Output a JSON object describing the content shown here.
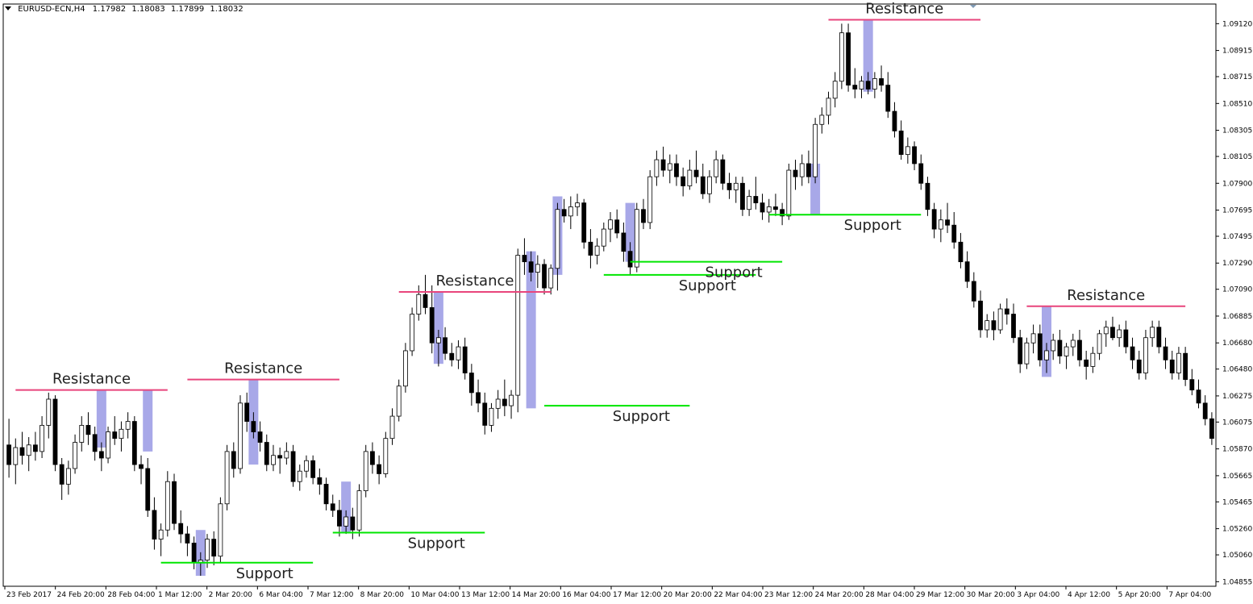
{
  "header": {
    "symbol": "EURUSD-ECN,H4",
    "ohlc": [
      "1.17982",
      "1.18083",
      "1.17899",
      "1.18032"
    ]
  },
  "chart_data": {
    "type": "candlestick",
    "title": "",
    "xlabel": "",
    "ylabel": "",
    "ylim": [
      1.0482,
      1.0927
    ],
    "grid": false,
    "y_ticks": [
      "1.09120",
      "1.08915",
      "1.08715",
      "1.08510",
      "1.08305",
      "1.08105",
      "1.07900",
      "1.07695",
      "1.07495",
      "1.07290",
      "1.07090",
      "1.06885",
      "1.06680",
      "1.06480",
      "1.06275",
      "1.06075",
      "1.05870",
      "1.05665",
      "1.05465",
      "1.05260",
      "1.05060",
      "1.04855"
    ],
    "x_ticks": [
      "23 Feb 2017",
      "24 Feb 20:00",
      "28 Feb 04:00",
      "1 Mar 12:00",
      "2 Mar 20:00",
      "6 Mar 04:00",
      "7 Mar 12:00",
      "8 Mar 20:00",
      "10 Mar 04:00",
      "13 Mar 12:00",
      "14 Mar 20:00",
      "16 Mar 04:00",
      "17 Mar 12:00",
      "20 Mar 20:00",
      "22 Mar 04:00",
      "23 Mar 12:00",
      "24 Mar 20:00",
      "28 Mar 04:00",
      "29 Mar 12:00",
      "30 Mar 20:00",
      "3 Apr 04:00",
      "4 Apr 12:00",
      "5 Apr 20:00",
      "7 Apr 04:00"
    ],
    "candles": [
      [
        1.059,
        1.061,
        1.0565,
        1.0575
      ],
      [
        1.0575,
        1.0595,
        1.056,
        1.0588
      ],
      [
        1.0588,
        1.06,
        1.0575,
        1.0582
      ],
      [
        1.0582,
        1.0596,
        1.057,
        1.059
      ],
      [
        1.059,
        1.06,
        1.0578,
        1.0585
      ],
      [
        1.0585,
        1.0612,
        1.058,
        1.0605
      ],
      [
        1.0605,
        1.063,
        1.0595,
        1.0625
      ],
      [
        1.0625,
        1.0628,
        1.057,
        1.0575
      ],
      [
        1.0575,
        1.058,
        1.0548,
        1.056
      ],
      [
        1.056,
        1.0578,
        1.0552,
        1.0572
      ],
      [
        1.0572,
        1.0598,
        1.0568,
        1.0592
      ],
      [
        1.0592,
        1.0612,
        1.0585,
        1.0605
      ],
      [
        1.0605,
        1.0615,
        1.059,
        1.0598
      ],
      [
        1.0598,
        1.0604,
        1.0578,
        1.0585
      ],
      [
        1.0585,
        1.0592,
        1.057,
        1.058
      ],
      [
        1.058,
        1.0604,
        1.0576,
        1.06
      ],
      [
        1.06,
        1.0612,
        1.059,
        1.0595
      ],
      [
        1.0595,
        1.0608,
        1.0585,
        1.0602
      ],
      [
        1.0602,
        1.0615,
        1.0595,
        1.0608
      ],
      [
        1.0608,
        1.0612,
        1.057,
        1.0575
      ],
      [
        1.0575,
        1.0582,
        1.056,
        1.0572
      ],
      [
        1.0572,
        1.058,
        1.0535,
        1.054
      ],
      [
        1.054,
        1.055,
        1.051,
        1.0518
      ],
      [
        1.0518,
        1.053,
        1.0505,
        1.0525
      ],
      [
        1.0525,
        1.057,
        1.052,
        1.0562
      ],
      [
        1.0562,
        1.0568,
        1.0525,
        1.053
      ],
      [
        1.053,
        1.054,
        1.0515,
        1.0522
      ],
      [
        1.0522,
        1.0528,
        1.0505,
        1.0515
      ],
      [
        1.0515,
        1.052,
        1.0495,
        1.05
      ],
      [
        1.05,
        1.0508,
        1.049,
        1.0502
      ],
      [
        1.0502,
        1.0522,
        1.0496,
        1.0518
      ],
      [
        1.0518,
        1.0524,
        1.0498,
        1.0505
      ],
      [
        1.0505,
        1.055,
        1.05,
        1.0545
      ],
      [
        1.0545,
        1.059,
        1.054,
        1.0585
      ],
      [
        1.0585,
        1.0592,
        1.0565,
        1.0572
      ],
      [
        1.0572,
        1.0628,
        1.0568,
        1.0622
      ],
      [
        1.0622,
        1.063,
        1.06,
        1.0608
      ],
      [
        1.0608,
        1.0615,
        1.0595,
        1.06
      ],
      [
        1.06,
        1.0608,
        1.0585,
        1.0592
      ],
      [
        1.0592,
        1.0598,
        1.057,
        1.0575
      ],
      [
        1.0575,
        1.059,
        1.057,
        1.0582
      ],
      [
        1.0582,
        1.0588,
        1.0568,
        1.058
      ],
      [
        1.058,
        1.0592,
        1.0575,
        1.0585
      ],
      [
        1.0585,
        1.059,
        1.0558,
        1.0562
      ],
      [
        1.0562,
        1.0575,
        1.0555,
        1.057
      ],
      [
        1.057,
        1.0582,
        1.0565,
        1.0578
      ],
      [
        1.0578,
        1.0582,
        1.056,
        1.0565
      ],
      [
        1.0565,
        1.0572,
        1.0552,
        1.056
      ],
      [
        1.056,
        1.0565,
        1.054,
        1.0545
      ],
      [
        1.0545,
        1.0552,
        1.0535,
        1.054
      ],
      [
        1.054,
        1.0548,
        1.052,
        1.0528
      ],
      [
        1.0528,
        1.054,
        1.0522,
        1.0535
      ],
      [
        1.0535,
        1.0542,
        1.0518,
        1.0525
      ],
      [
        1.0525,
        1.056,
        1.052,
        1.0555
      ],
      [
        1.0555,
        1.059,
        1.055,
        1.0585
      ],
      [
        1.0585,
        1.0592,
        1.0568,
        1.0575
      ],
      [
        1.0575,
        1.0582,
        1.056,
        1.0568
      ],
      [
        1.0568,
        1.06,
        1.0565,
        1.0595
      ],
      [
        1.0595,
        1.0618,
        1.059,
        1.0612
      ],
      [
        1.0612,
        1.064,
        1.0608,
        1.0635
      ],
      [
        1.0635,
        1.0668,
        1.063,
        1.0662
      ],
      [
        1.0662,
        1.0695,
        1.0658,
        1.069
      ],
      [
        1.069,
        1.0712,
        1.0685,
        1.0705
      ],
      [
        1.0705,
        1.072,
        1.069,
        1.0695
      ],
      [
        1.0695,
        1.0712,
        1.066,
        1.0668
      ],
      [
        1.0668,
        1.0678,
        1.065,
        1.0672
      ],
      [
        1.0672,
        1.068,
        1.0655,
        1.066
      ],
      [
        1.066,
        1.0668,
        1.065,
        1.0655
      ],
      [
        1.0655,
        1.067,
        1.0648,
        1.0665
      ],
      [
        1.0665,
        1.0672,
        1.064,
        1.0645
      ],
      [
        1.0645,
        1.0652,
        1.062,
        1.063
      ],
      [
        1.063,
        1.064,
        1.0615,
        1.0622
      ],
      [
        1.0622,
        1.063,
        1.0598,
        1.0605
      ],
      [
        1.0605,
        1.0622,
        1.06,
        1.0618
      ],
      [
        1.0618,
        1.0632,
        1.061,
        1.0625
      ],
      [
        1.0625,
        1.064,
        1.0612,
        1.062
      ],
      [
        1.062,
        1.0632,
        1.061,
        1.0628
      ],
      [
        1.0628,
        1.074,
        1.0615,
        1.0735
      ],
      [
        1.0735,
        1.0748,
        1.072,
        1.073
      ],
      [
        1.073,
        1.0738,
        1.0715,
        1.0722
      ],
      [
        1.0722,
        1.0735,
        1.071,
        1.0728
      ],
      [
        1.0728,
        1.0732,
        1.0705,
        1.071
      ],
      [
        1.071,
        1.0728,
        1.0705,
        1.0725
      ],
      [
        1.0725,
        1.0775,
        1.0708,
        1.077
      ],
      [
        1.077,
        1.0778,
        1.076,
        1.0765
      ],
      [
        1.0765,
        1.078,
        1.0755,
        1.0772
      ],
      [
        1.0772,
        1.0782,
        1.0765,
        1.0775
      ],
      [
        1.0775,
        1.0778,
        1.074,
        1.0745
      ],
      [
        1.0745,
        1.0755,
        1.0725,
        1.0735
      ],
      [
        1.0735,
        1.0748,
        1.0728,
        1.0742
      ],
      [
        1.0742,
        1.076,
        1.0738,
        1.0755
      ],
      [
        1.0755,
        1.0768,
        1.0745,
        1.0762
      ],
      [
        1.0762,
        1.077,
        1.0748,
        1.0752
      ],
      [
        1.0752,
        1.076,
        1.073,
        1.0738
      ],
      [
        1.0738,
        1.0745,
        1.072,
        1.0726
      ],
      [
        1.0726,
        1.0775,
        1.0722,
        1.077
      ],
      [
        1.077,
        1.0778,
        1.0755,
        1.076
      ],
      [
        1.076,
        1.08,
        1.0755,
        1.0795
      ],
      [
        1.0795,
        1.0815,
        1.0788,
        1.0808
      ],
      [
        1.0808,
        1.0818,
        1.0795,
        1.08
      ],
      [
        1.08,
        1.0812,
        1.079,
        1.0805
      ],
      [
        1.0805,
        1.0812,
        1.0788,
        1.0795
      ],
      [
        1.0795,
        1.0802,
        1.078,
        1.0788
      ],
      [
        1.0788,
        1.0808,
        1.0785,
        1.08
      ],
      [
        1.08,
        1.0815,
        1.079,
        1.0795
      ],
      [
        1.0795,
        1.0805,
        1.0778,
        1.0782
      ],
      [
        1.0782,
        1.08,
        1.0775,
        1.0795
      ],
      [
        1.0795,
        1.0815,
        1.079,
        1.0808
      ],
      [
        1.0808,
        1.0812,
        1.0785,
        1.079
      ],
      [
        1.079,
        1.0798,
        1.0778,
        1.0785
      ],
      [
        1.0785,
        1.0795,
        1.0775,
        1.079
      ],
      [
        1.079,
        1.0795,
        1.0765,
        1.077
      ],
      [
        1.077,
        1.0785,
        1.0765,
        1.078
      ],
      [
        1.078,
        1.0795,
        1.077,
        1.0775
      ],
      [
        1.0775,
        1.0782,
        1.0762,
        1.0768
      ],
      [
        1.0768,
        1.0778,
        1.076,
        1.0772
      ],
      [
        1.0772,
        1.0782,
        1.0765,
        1.077
      ],
      [
        1.077,
        1.0775,
        1.0758,
        1.0765
      ],
      [
        1.0765,
        1.0805,
        1.0762,
        1.08
      ],
      [
        1.08,
        1.0808,
        1.0785,
        1.0795
      ],
      [
        1.0795,
        1.0812,
        1.0788,
        1.0805
      ],
      [
        1.0805,
        1.0815,
        1.079,
        1.0795
      ],
      [
        1.0795,
        1.084,
        1.079,
        1.0835
      ],
      [
        1.0835,
        1.0848,
        1.0828,
        1.0842
      ],
      [
        1.0842,
        1.086,
        1.0835,
        1.0855
      ],
      [
        1.0855,
        1.0875,
        1.0848,
        1.0868
      ],
      [
        1.0868,
        1.0912,
        1.0862,
        1.0905
      ],
      [
        1.0905,
        1.0912,
        1.086,
        1.0865
      ],
      [
        1.0865,
        1.0878,
        1.0855,
        1.0862
      ],
      [
        1.0862,
        1.0872,
        1.0855,
        1.0868
      ],
      [
        1.0868,
        1.0875,
        1.0858,
        1.0862
      ],
      [
        1.0862,
        1.0875,
        1.0855,
        1.087
      ],
      [
        1.087,
        1.088,
        1.086,
        1.0865
      ],
      [
        1.0865,
        1.0875,
        1.084,
        1.0845
      ],
      [
        1.0845,
        1.0852,
        1.0825,
        1.083
      ],
      [
        1.083,
        1.0838,
        1.0808,
        1.0812
      ],
      [
        1.0812,
        1.0825,
        1.0805,
        1.0818
      ],
      [
        1.0818,
        1.0822,
        1.08,
        1.0805
      ],
      [
        1.0805,
        1.0812,
        1.0785,
        1.079
      ],
      [
        1.079,
        1.0795,
        1.0765,
        1.077
      ],
      [
        1.077,
        1.0775,
        1.0748,
        1.0755
      ],
      [
        1.0755,
        1.077,
        1.0745,
        1.0762
      ],
      [
        1.0762,
        1.0775,
        1.0752,
        1.0758
      ],
      [
        1.0758,
        1.0768,
        1.074,
        1.0745
      ],
      [
        1.0745,
        1.0752,
        1.0725,
        1.073
      ],
      [
        1.073,
        1.0738,
        1.071,
        1.0715
      ],
      [
        1.0715,
        1.0722,
        1.0695,
        1.07
      ],
      [
        1.07,
        1.0708,
        1.0672,
        1.0678
      ],
      [
        1.0678,
        1.069,
        1.0672,
        1.0685
      ],
      [
        1.0685,
        1.0692,
        1.067,
        1.0678
      ],
      [
        1.0678,
        1.0698,
        1.0675,
        1.0694
      ],
      [
        1.0694,
        1.0702,
        1.0682,
        1.069
      ],
      [
        1.069,
        1.0698,
        1.0668,
        1.0672
      ],
      [
        1.0672,
        1.0678,
        1.0645,
        1.0652
      ],
      [
        1.0652,
        1.0672,
        1.0648,
        1.0668
      ],
      [
        1.0668,
        1.0682,
        1.066,
        1.0675
      ],
      [
        1.0675,
        1.0682,
        1.065,
        1.0655
      ],
      [
        1.0655,
        1.0668,
        1.0645,
        1.0662
      ],
      [
        1.0662,
        1.0675,
        1.0655,
        1.067
      ],
      [
        1.067,
        1.0678,
        1.0652,
        1.0658
      ],
      [
        1.0658,
        1.0668,
        1.0648,
        1.0665
      ],
      [
        1.0665,
        1.0675,
        1.0658,
        1.067
      ],
      [
        1.067,
        1.0678,
        1.065,
        1.0655
      ],
      [
        1.0655,
        1.0662,
        1.064,
        1.065
      ],
      [
        1.065,
        1.0665,
        1.0645,
        1.066
      ],
      [
        1.066,
        1.0678,
        1.0655,
        1.0675
      ],
      [
        1.0675,
        1.0685,
        1.0665,
        1.068
      ],
      [
        1.068,
        1.0688,
        1.067,
        1.0672
      ],
      [
        1.0672,
        1.0682,
        1.0665,
        1.0678
      ],
      [
        1.0678,
        1.0685,
        1.066,
        1.0665
      ],
      [
        1.0665,
        1.0672,
        1.0648,
        1.0655
      ],
      [
        1.0655,
        1.0662,
        1.064,
        1.0645
      ],
      [
        1.0645,
        1.0678,
        1.064,
        1.0672
      ],
      [
        1.0672,
        1.0685,
        1.0665,
        1.068
      ],
      [
        1.068,
        1.0685,
        1.066,
        1.0665
      ],
      [
        1.0665,
        1.0672,
        1.0648,
        1.0655
      ],
      [
        1.0655,
        1.0662,
        1.064,
        1.0645
      ],
      [
        1.0645,
        1.0665,
        1.064,
        1.066
      ],
      [
        1.066,
        1.0665,
        1.0635,
        1.064
      ],
      [
        1.064,
        1.0648,
        1.0628,
        1.0632
      ],
      [
        1.0632,
        1.064,
        1.0618,
        1.0622
      ],
      [
        1.0622,
        1.0628,
        1.0605,
        1.061
      ],
      [
        1.061,
        1.0615,
        1.059,
        1.0595
      ]
    ]
  },
  "annotations": {
    "resistance_label": "Resistance",
    "support_label": "Support",
    "resistance_color": "#e8457c",
    "support_color": "#00e600",
    "highlight_color": "#9e9ee6",
    "resistance": [
      {
        "price": 1.0632,
        "from": 1,
        "to": 24
      },
      {
        "price": 1.064,
        "from": 27,
        "to": 50
      },
      {
        "price": 1.0707,
        "from": 59,
        "to": 82
      },
      {
        "price": 1.0915,
        "from": 124,
        "to": 147
      },
      {
        "price": 1.0696,
        "from": 154,
        "to": 178
      }
    ],
    "support": [
      {
        "price": 1.05,
        "from": 23,
        "to": 46
      },
      {
        "price": 1.0523,
        "from": 49,
        "to": 72
      },
      {
        "price": 1.062,
        "from": 81,
        "to": 103
      },
      {
        "price": 1.072,
        "from": 90,
        "to": 113
      },
      {
        "price": 1.073,
        "from": 94,
        "to": 117
      },
      {
        "price": 1.0766,
        "from": 115,
        "to": 138
      }
    ],
    "highlights": [
      {
        "index": 14,
        "high": 1.0632,
        "low": 1.0588
      },
      {
        "index": 21,
        "high": 1.0632,
        "low": 1.0585
      },
      {
        "index": 37,
        "high": 1.064,
        "low": 1.0575
      },
      {
        "index": 29,
        "high": 1.0525,
        "low": 1.049
      },
      {
        "index": 51,
        "high": 1.0562,
        "low": 1.0523
      },
      {
        "index": 65,
        "high": 1.0707,
        "low": 1.0652
      },
      {
        "index": 79,
        "high": 1.0738,
        "low": 1.0618
      },
      {
        "index": 83,
        "high": 1.078,
        "low": 1.072
      },
      {
        "index": 94,
        "high": 1.0775,
        "low": 1.073
      },
      {
        "index": 122,
        "high": 1.0805,
        "low": 1.0766
      },
      {
        "index": 130,
        "high": 1.0915,
        "low": 1.086
      },
      {
        "index": 157,
        "high": 1.0696,
        "low": 1.0642
      }
    ]
  }
}
